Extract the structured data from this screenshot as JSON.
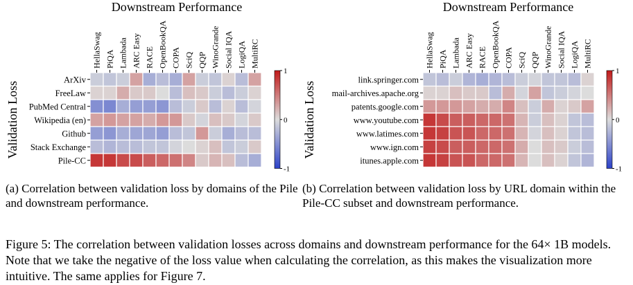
{
  "chart_data": [
    {
      "type": "heatmap",
      "title": "Downstream Performance",
      "ylabel": "Validation Loss",
      "columns": [
        "HellaSwag",
        "PiQA",
        "Lambada",
        "ARC Easy",
        "RACE",
        "OpenBookQA",
        "COPA",
        "SciQ",
        "QQP",
        "WinoGrande",
        "Social IQA",
        "LogiQA",
        "MultiRC"
      ],
      "rows": [
        "ArXiv",
        "FreeLaw",
        "PubMed Central",
        "Wikipedia (en)",
        "Github",
        "Stack Exchange",
        "Pile-CC"
      ],
      "values": [
        [
          -0.1,
          -0.15,
          -0.1,
          0.3,
          -0.3,
          -0.2,
          -0.3,
          0.3,
          -0.1,
          -0.15,
          0.05,
          -0.2,
          0.3
        ],
        [
          0.05,
          0.05,
          0.25,
          0.1,
          0.1,
          0.0,
          -0.2,
          0.15,
          0.1,
          -0.1,
          -0.2,
          -0.1,
          0.05
        ],
        [
          -0.5,
          -0.55,
          -0.3,
          -0.4,
          -0.4,
          -0.45,
          -0.2,
          -0.1,
          0.1,
          -0.2,
          0.05,
          -0.2,
          -0.05
        ],
        [
          0.3,
          0.35,
          0.3,
          0.3,
          0.25,
          0.35,
          0.35,
          0.1,
          -0.05,
          0.15,
          0.1,
          -0.05,
          0.1
        ],
        [
          -0.4,
          -0.45,
          -0.3,
          -0.35,
          -0.35,
          -0.4,
          -0.2,
          -0.15,
          0.35,
          -0.1,
          -0.3,
          -0.2,
          -0.2
        ],
        [
          -0.2,
          -0.25,
          -0.2,
          -0.2,
          -0.15,
          -0.15,
          -0.05,
          0.0,
          0.05,
          0.15,
          -0.15,
          -0.1,
          0.1
        ],
        [
          0.85,
          0.85,
          0.75,
          0.75,
          0.65,
          0.6,
          0.55,
          0.45,
          0.1,
          0.2,
          0.15,
          -0.2,
          -0.3
        ]
      ],
      "colorbar": {
        "min": -1,
        "max": 1,
        "ticks": [
          1,
          0,
          -1
        ]
      },
      "caption": "(a) Correlation between validation loss by domains of the Pile and downstream performance."
    },
    {
      "type": "heatmap",
      "title": "Downstream Performance",
      "ylabel": "Validation Loss",
      "columns": [
        "HellaSwag",
        "PiQA",
        "Lambada",
        "ARC Easy",
        "RACE",
        "OpenBookQA",
        "COPA",
        "SciQ",
        "QQP",
        "WinoGrande",
        "Social IQA",
        "LogiQA",
        "MultiRC"
      ],
      "rows": [
        "link.springer.com",
        "mail-archives.apache.org",
        "patents.google.com",
        "www.youtube.com",
        "www.latimes.com",
        "www.ign.com",
        "itunes.apple.com"
      ],
      "values": [
        [
          -0.15,
          -0.2,
          -0.1,
          -0.25,
          -0.3,
          -0.25,
          -0.2,
          -0.1,
          -0.05,
          -0.15,
          -0.15,
          -0.2,
          0.05
        ],
        [
          0.05,
          0.05,
          0.15,
          0.1,
          0.1,
          -0.2,
          0.25,
          -0.05,
          0.3,
          -0.15,
          -0.1,
          -0.05,
          0.0
        ],
        [
          0.35,
          0.35,
          0.35,
          0.3,
          0.25,
          0.25,
          0.45,
          0.15,
          -0.1,
          0.25,
          0.05,
          0.1,
          0.3
        ],
        [
          0.85,
          0.75,
          0.65,
          0.65,
          0.6,
          0.6,
          0.55,
          0.2,
          -0.1,
          0.15,
          0.05,
          -0.15,
          -0.2
        ],
        [
          0.85,
          0.8,
          0.7,
          0.7,
          0.6,
          0.6,
          0.55,
          0.2,
          -0.05,
          0.15,
          0.05,
          -0.15,
          -0.2
        ],
        [
          0.8,
          0.75,
          0.65,
          0.65,
          0.6,
          0.6,
          0.55,
          0.25,
          0.0,
          0.15,
          0.1,
          -0.1,
          -0.2
        ],
        [
          0.85,
          0.8,
          0.7,
          0.7,
          0.6,
          0.6,
          0.55,
          0.2,
          0.0,
          0.15,
          0.05,
          -0.15,
          -0.25
        ]
      ],
      "colorbar": {
        "min": -1,
        "max": 1,
        "ticks": [
          1,
          0,
          -1
        ]
      },
      "caption": "(b) Correlation between validation loss by URL domain within the Pile-CC subset and downstream performance."
    }
  ],
  "figure_caption": "Figure 5: The correlation between validation losses across domains and downstream performance for the 64× 1B models. Note that we take the negative of the loss value when calculating the correlation, as this makes the visualization more intuitive. The same applies for Figure 7.",
  "colors": {
    "negative": "#2b41c8",
    "neutral": "#dcdcdc",
    "positive": "#c11a1a",
    "cell_border": "#ffffff"
  }
}
